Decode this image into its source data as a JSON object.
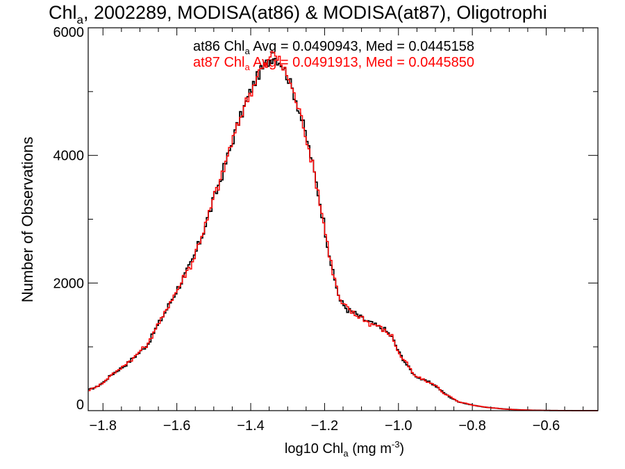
{
  "chart_data": {
    "type": "line",
    "title": {
      "prefix": "Chl",
      "sub": "a",
      "rest": ", 2002289, MODISA(at86) & MODISA(at87), Oligotrophi"
    },
    "xlabel": {
      "prefix": "log10 Chl",
      "sub": "a",
      "mid": " (mg m",
      "sup": "-3",
      "end": ")"
    },
    "ylabel": "Number of Observations",
    "xlim": [
      -1.84,
      -0.46
    ],
    "ylim": [
      0,
      6000
    ],
    "x_ticks": [
      -1.8,
      -1.6,
      -1.4,
      -1.2,
      -1.0,
      -0.8,
      -0.6
    ],
    "x_tick_labels": [
      "−1.8",
      "−1.6",
      "−1.4",
      "−1.2",
      "−1.0",
      "−0.8",
      "−0.6"
    ],
    "y_ticks": [
      0,
      2000,
      4000,
      6000
    ],
    "y_tick_labels": [
      "0",
      "2000",
      "4000",
      "6000"
    ],
    "grid": false,
    "annotations": [
      {
        "pre": "at86 Chl",
        "sub": "a",
        "post": " Avg = 0.0490943, Med = 0.0445158",
        "color": "#000000"
      },
      {
        "pre": "at87 Chl",
        "sub": "a",
        "post": " Avg = 0.0491913, Med = 0.0445850",
        "color": "#ff0000"
      }
    ],
    "series": [
      {
        "color": "#000000",
        "points": [
          [
            -1.84,
            330
          ],
          [
            -1.82,
            370
          ],
          [
            -1.8,
            450
          ],
          [
            -1.78,
            560
          ],
          [
            -1.76,
            640
          ],
          [
            -1.74,
            720
          ],
          [
            -1.72,
            830
          ],
          [
            -1.7,
            930
          ],
          [
            -1.68,
            1050
          ],
          [
            -1.66,
            1280
          ],
          [
            -1.64,
            1480
          ],
          [
            -1.62,
            1700
          ],
          [
            -1.6,
            1920
          ],
          [
            -1.58,
            2120
          ],
          [
            -1.56,
            2350
          ],
          [
            -1.54,
            2650
          ],
          [
            -1.52,
            3000
          ],
          [
            -1.5,
            3350
          ],
          [
            -1.48,
            3700
          ],
          [
            -1.46,
            4070
          ],
          [
            -1.44,
            4450
          ],
          [
            -1.42,
            4750
          ],
          [
            -1.4,
            5050
          ],
          [
            -1.38,
            5280
          ],
          [
            -1.36,
            5440
          ],
          [
            -1.34,
            5560
          ],
          [
            -1.32,
            5450
          ],
          [
            -1.3,
            5200
          ],
          [
            -1.28,
            4880
          ],
          [
            -1.26,
            4470
          ],
          [
            -1.24,
            4000
          ],
          [
            -1.22,
            3420
          ],
          [
            -1.2,
            2800
          ],
          [
            -1.18,
            2150
          ],
          [
            -1.16,
            1720
          ],
          [
            -1.14,
            1580
          ],
          [
            -1.12,
            1520
          ],
          [
            -1.1,
            1440
          ],
          [
            -1.08,
            1380
          ],
          [
            -1.06,
            1320
          ],
          [
            -1.04,
            1270
          ],
          [
            -1.02,
            1150
          ],
          [
            -1.0,
            900
          ],
          [
            -0.98,
            720
          ],
          [
            -0.96,
            560
          ],
          [
            -0.94,
            490
          ],
          [
            -0.92,
            450
          ],
          [
            -0.9,
            380
          ],
          [
            -0.88,
            280
          ],
          [
            -0.86,
            200
          ],
          [
            -0.84,
            140
          ],
          [
            -0.82,
            110
          ],
          [
            -0.8,
            85
          ],
          [
            -0.78,
            65
          ],
          [
            -0.76,
            50
          ],
          [
            -0.74,
            38
          ],
          [
            -0.72,
            28
          ],
          [
            -0.7,
            20
          ],
          [
            -0.68,
            14
          ],
          [
            -0.66,
            10
          ],
          [
            -0.64,
            7
          ],
          [
            -0.62,
            5
          ],
          [
            -0.6,
            3
          ],
          [
            -0.58,
            2
          ],
          [
            -0.56,
            1
          ],
          [
            -0.54,
            1
          ],
          [
            -0.52,
            0
          ],
          [
            -0.5,
            0
          ],
          [
            -0.48,
            0
          ],
          [
            -0.46,
            0
          ]
        ]
      },
      {
        "color": "#ff0000",
        "points": [
          [
            -1.84,
            320
          ],
          [
            -1.82,
            380
          ],
          [
            -1.8,
            440
          ],
          [
            -1.78,
            570
          ],
          [
            -1.76,
            630
          ],
          [
            -1.74,
            740
          ],
          [
            -1.72,
            820
          ],
          [
            -1.7,
            950
          ],
          [
            -1.68,
            1040
          ],
          [
            -1.66,
            1300
          ],
          [
            -1.64,
            1460
          ],
          [
            -1.62,
            1720
          ],
          [
            -1.6,
            1900
          ],
          [
            -1.58,
            2140
          ],
          [
            -1.56,
            2330
          ],
          [
            -1.54,
            2680
          ],
          [
            -1.52,
            2980
          ],
          [
            -1.5,
            3380
          ],
          [
            -1.48,
            3680
          ],
          [
            -1.46,
            4100
          ],
          [
            -1.44,
            4420
          ],
          [
            -1.42,
            4780
          ],
          [
            -1.4,
            5020
          ],
          [
            -1.38,
            5320
          ],
          [
            -1.36,
            5410
          ],
          [
            -1.34,
            5640
          ],
          [
            -1.32,
            5420
          ],
          [
            -1.3,
            5220
          ],
          [
            -1.28,
            4860
          ],
          [
            -1.26,
            4490
          ],
          [
            -1.24,
            3980
          ],
          [
            -1.22,
            3440
          ],
          [
            -1.2,
            2780
          ],
          [
            -1.18,
            2170
          ],
          [
            -1.16,
            1700
          ],
          [
            -1.14,
            1600
          ],
          [
            -1.12,
            1500
          ],
          [
            -1.1,
            1460
          ],
          [
            -1.08,
            1360
          ],
          [
            -1.06,
            1340
          ],
          [
            -1.04,
            1250
          ],
          [
            -1.02,
            1170
          ],
          [
            -1.0,
            880
          ],
          [
            -0.98,
            740
          ],
          [
            -0.96,
            550
          ],
          [
            -0.94,
            500
          ],
          [
            -0.92,
            440
          ],
          [
            -0.9,
            390
          ],
          [
            -0.88,
            270
          ],
          [
            -0.86,
            210
          ],
          [
            -0.84,
            135
          ],
          [
            -0.82,
            115
          ],
          [
            -0.8,
            80
          ],
          [
            -0.78,
            68
          ],
          [
            -0.76,
            48
          ],
          [
            -0.74,
            40
          ],
          [
            -0.72,
            26
          ],
          [
            -0.7,
            21
          ],
          [
            -0.68,
            13
          ],
          [
            -0.66,
            11
          ],
          [
            -0.64,
            6
          ],
          [
            -0.62,
            5
          ],
          [
            -0.6,
            3
          ],
          [
            -0.58,
            2
          ],
          [
            -0.56,
            1
          ],
          [
            -0.54,
            0
          ],
          [
            -0.52,
            0
          ],
          [
            -0.5,
            0
          ],
          [
            -0.48,
            0
          ],
          [
            -0.46,
            0
          ]
        ]
      }
    ]
  }
}
